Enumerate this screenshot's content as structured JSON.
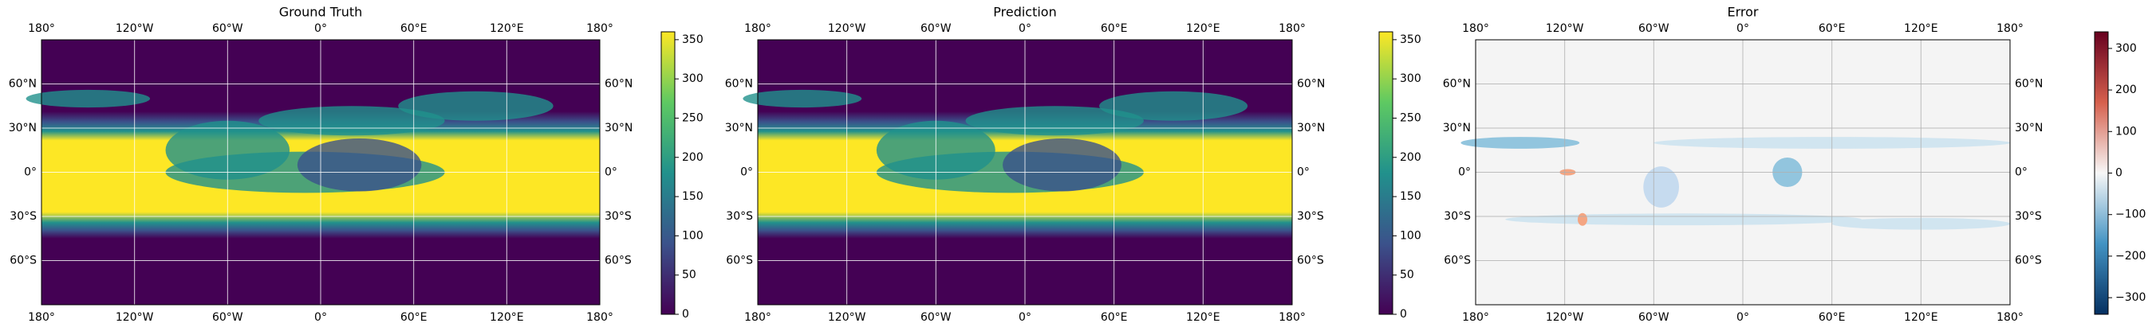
{
  "panels": [
    {
      "title": "Ground Truth",
      "xticks": [
        {
          "value": -180,
          "label": "180°"
        },
        {
          "value": -120,
          "label": "120°W"
        },
        {
          "value": -60,
          "label": "60°W"
        },
        {
          "value": 0,
          "label": "0°"
        },
        {
          "value": 60,
          "label": "60°E"
        },
        {
          "value": 120,
          "label": "120°E"
        },
        {
          "value": 180,
          "label": "180°"
        }
      ],
      "yticks": [
        {
          "value": 60,
          "label": "60°N"
        },
        {
          "value": 30,
          "label": "30°N"
        },
        {
          "value": 0,
          "label": "0°"
        },
        {
          "value": -30,
          "label": "30°S"
        },
        {
          "value": -60,
          "label": "60°S"
        }
      ],
      "colorbar": {
        "lim": [
          0,
          360
        ],
        "ticks": [
          0,
          50,
          100,
          150,
          200,
          250,
          300,
          350
        ],
        "colors": [
          "#440154",
          "#3b528b",
          "#21918c",
          "#5ec962",
          "#fde725"
        ]
      }
    },
    {
      "title": "Prediction",
      "xticks": [
        {
          "value": -180,
          "label": "180°"
        },
        {
          "value": -120,
          "label": "120°W"
        },
        {
          "value": -60,
          "label": "60°W"
        },
        {
          "value": 0,
          "label": "0°"
        },
        {
          "value": 60,
          "label": "60°E"
        },
        {
          "value": 120,
          "label": "120°E"
        },
        {
          "value": 180,
          "label": "180°"
        }
      ],
      "yticks": [
        {
          "value": 60,
          "label": "60°N"
        },
        {
          "value": 30,
          "label": "30°N"
        },
        {
          "value": 0,
          "label": "0°"
        },
        {
          "value": -30,
          "label": "30°S"
        },
        {
          "value": -60,
          "label": "60°S"
        }
      ],
      "colorbar": {
        "lim": [
          0,
          360
        ],
        "ticks": [
          0,
          50,
          100,
          150,
          200,
          250,
          300,
          350
        ],
        "colors": [
          "#440154",
          "#3b528b",
          "#21918c",
          "#5ec962",
          "#fde725"
        ]
      }
    },
    {
      "title": "Error",
      "xticks": [
        {
          "value": -180,
          "label": "180°"
        },
        {
          "value": -120,
          "label": "120°W"
        },
        {
          "value": -60,
          "label": "60°W"
        },
        {
          "value": 0,
          "label": "0°"
        },
        {
          "value": 60,
          "label": "60°E"
        },
        {
          "value": 120,
          "label": "120°E"
        },
        {
          "value": 180,
          "label": "180°"
        }
      ],
      "yticks": [
        {
          "value": 60,
          "label": "60°N"
        },
        {
          "value": 30,
          "label": "30°N"
        },
        {
          "value": 0,
          "label": "0°"
        },
        {
          "value": -30,
          "label": "30°S"
        },
        {
          "value": -60,
          "label": "60°S"
        }
      ],
      "colorbar": {
        "lim": [
          -340,
          340
        ],
        "ticks": [
          {
            "value": -300,
            "label": "−300"
          },
          {
            "value": -200,
            "label": "−200"
          },
          {
            "value": -100,
            "label": "−100"
          },
          0,
          100,
          200,
          300
        ],
        "colors": [
          "#053061",
          "#4393c3",
          "#f7f7f7",
          "#d6604d",
          "#67001f"
        ]
      }
    }
  ]
}
